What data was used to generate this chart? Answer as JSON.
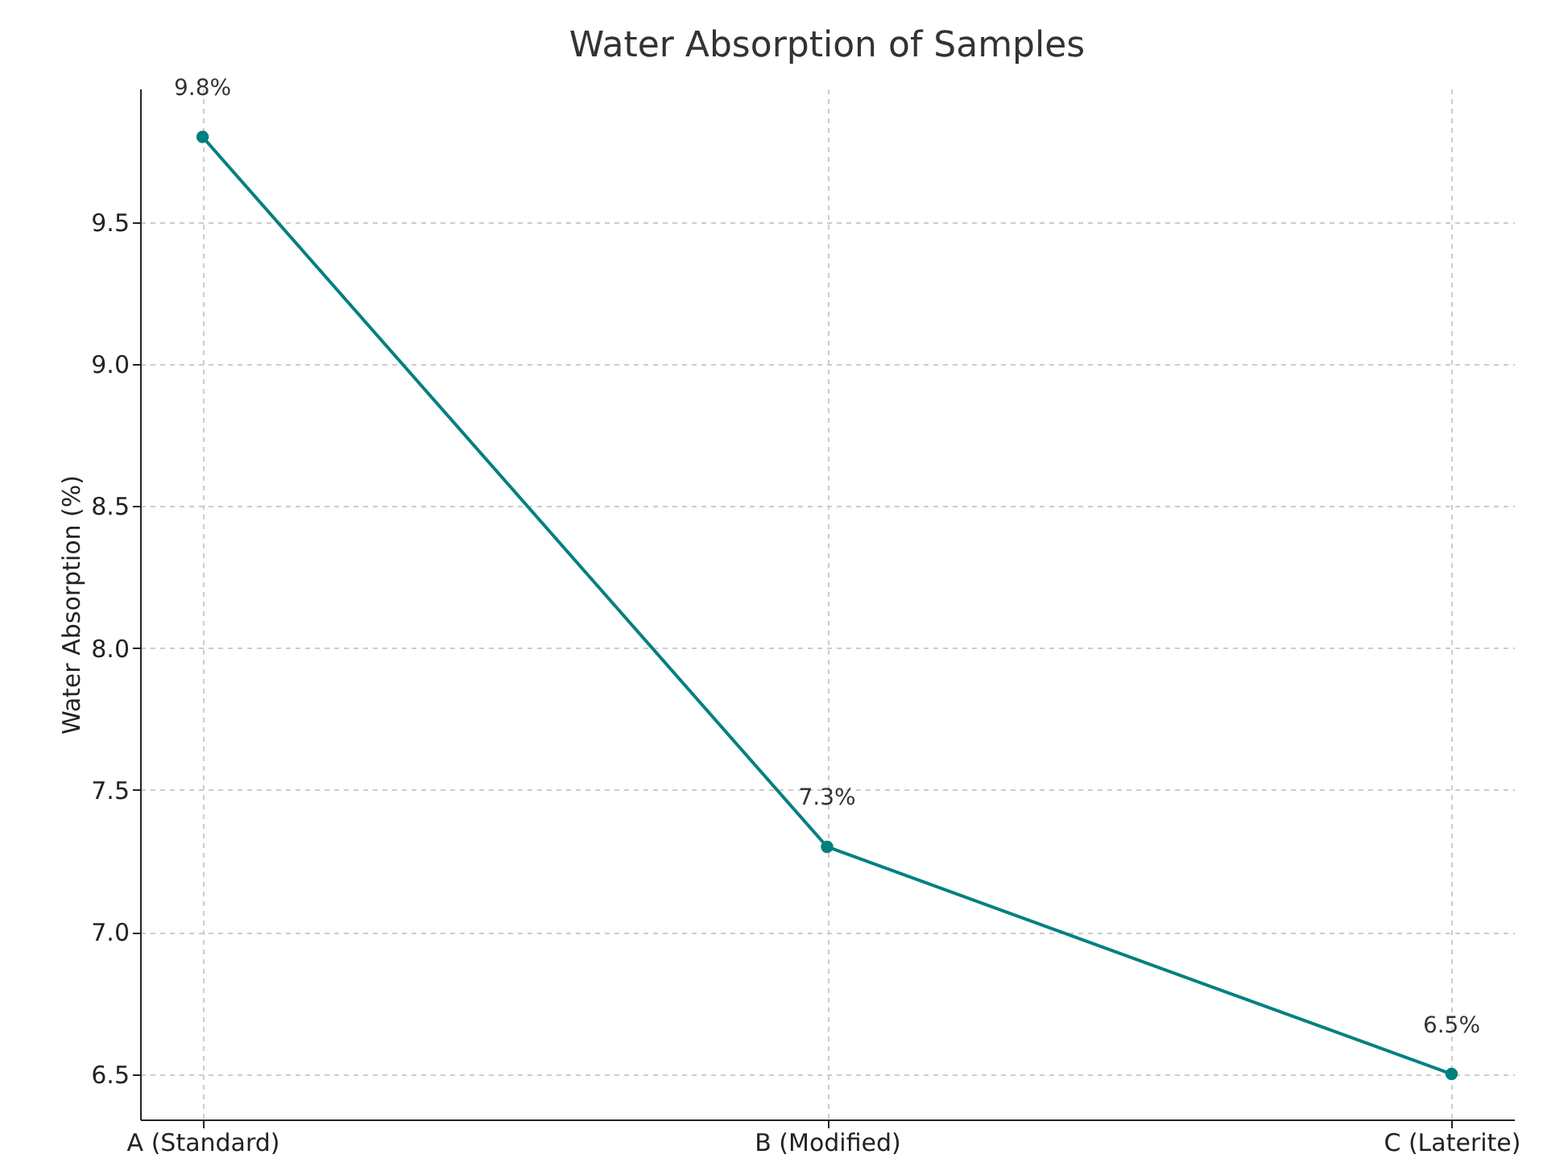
{
  "chart_data": {
    "type": "line",
    "title": "Water Absorption of Samples",
    "ylabel": "Water Absorption (%)",
    "categories": [
      "A (Standard)",
      "B (Modified)",
      "C (Laterite)"
    ],
    "series": [
      {
        "color": "#008080",
        "values": [
          9.8,
          7.3,
          6.5
        ],
        "value_labels": [
          "9.8%",
          "7.3%",
          "6.5%"
        ]
      }
    ],
    "ylim": [
      6.34,
      9.97
    ],
    "yticks": [
      6.5,
      {
        "value": 7,
        "label": "7.0"
      },
      7.5,
      {
        "value": 8,
        "label": "8.0"
      },
      8.5,
      {
        "value": 9,
        "label": "9.0"
      },
      9.5
    ],
    "grid": true,
    "marker": "circle",
    "line_style": "solid"
  }
}
